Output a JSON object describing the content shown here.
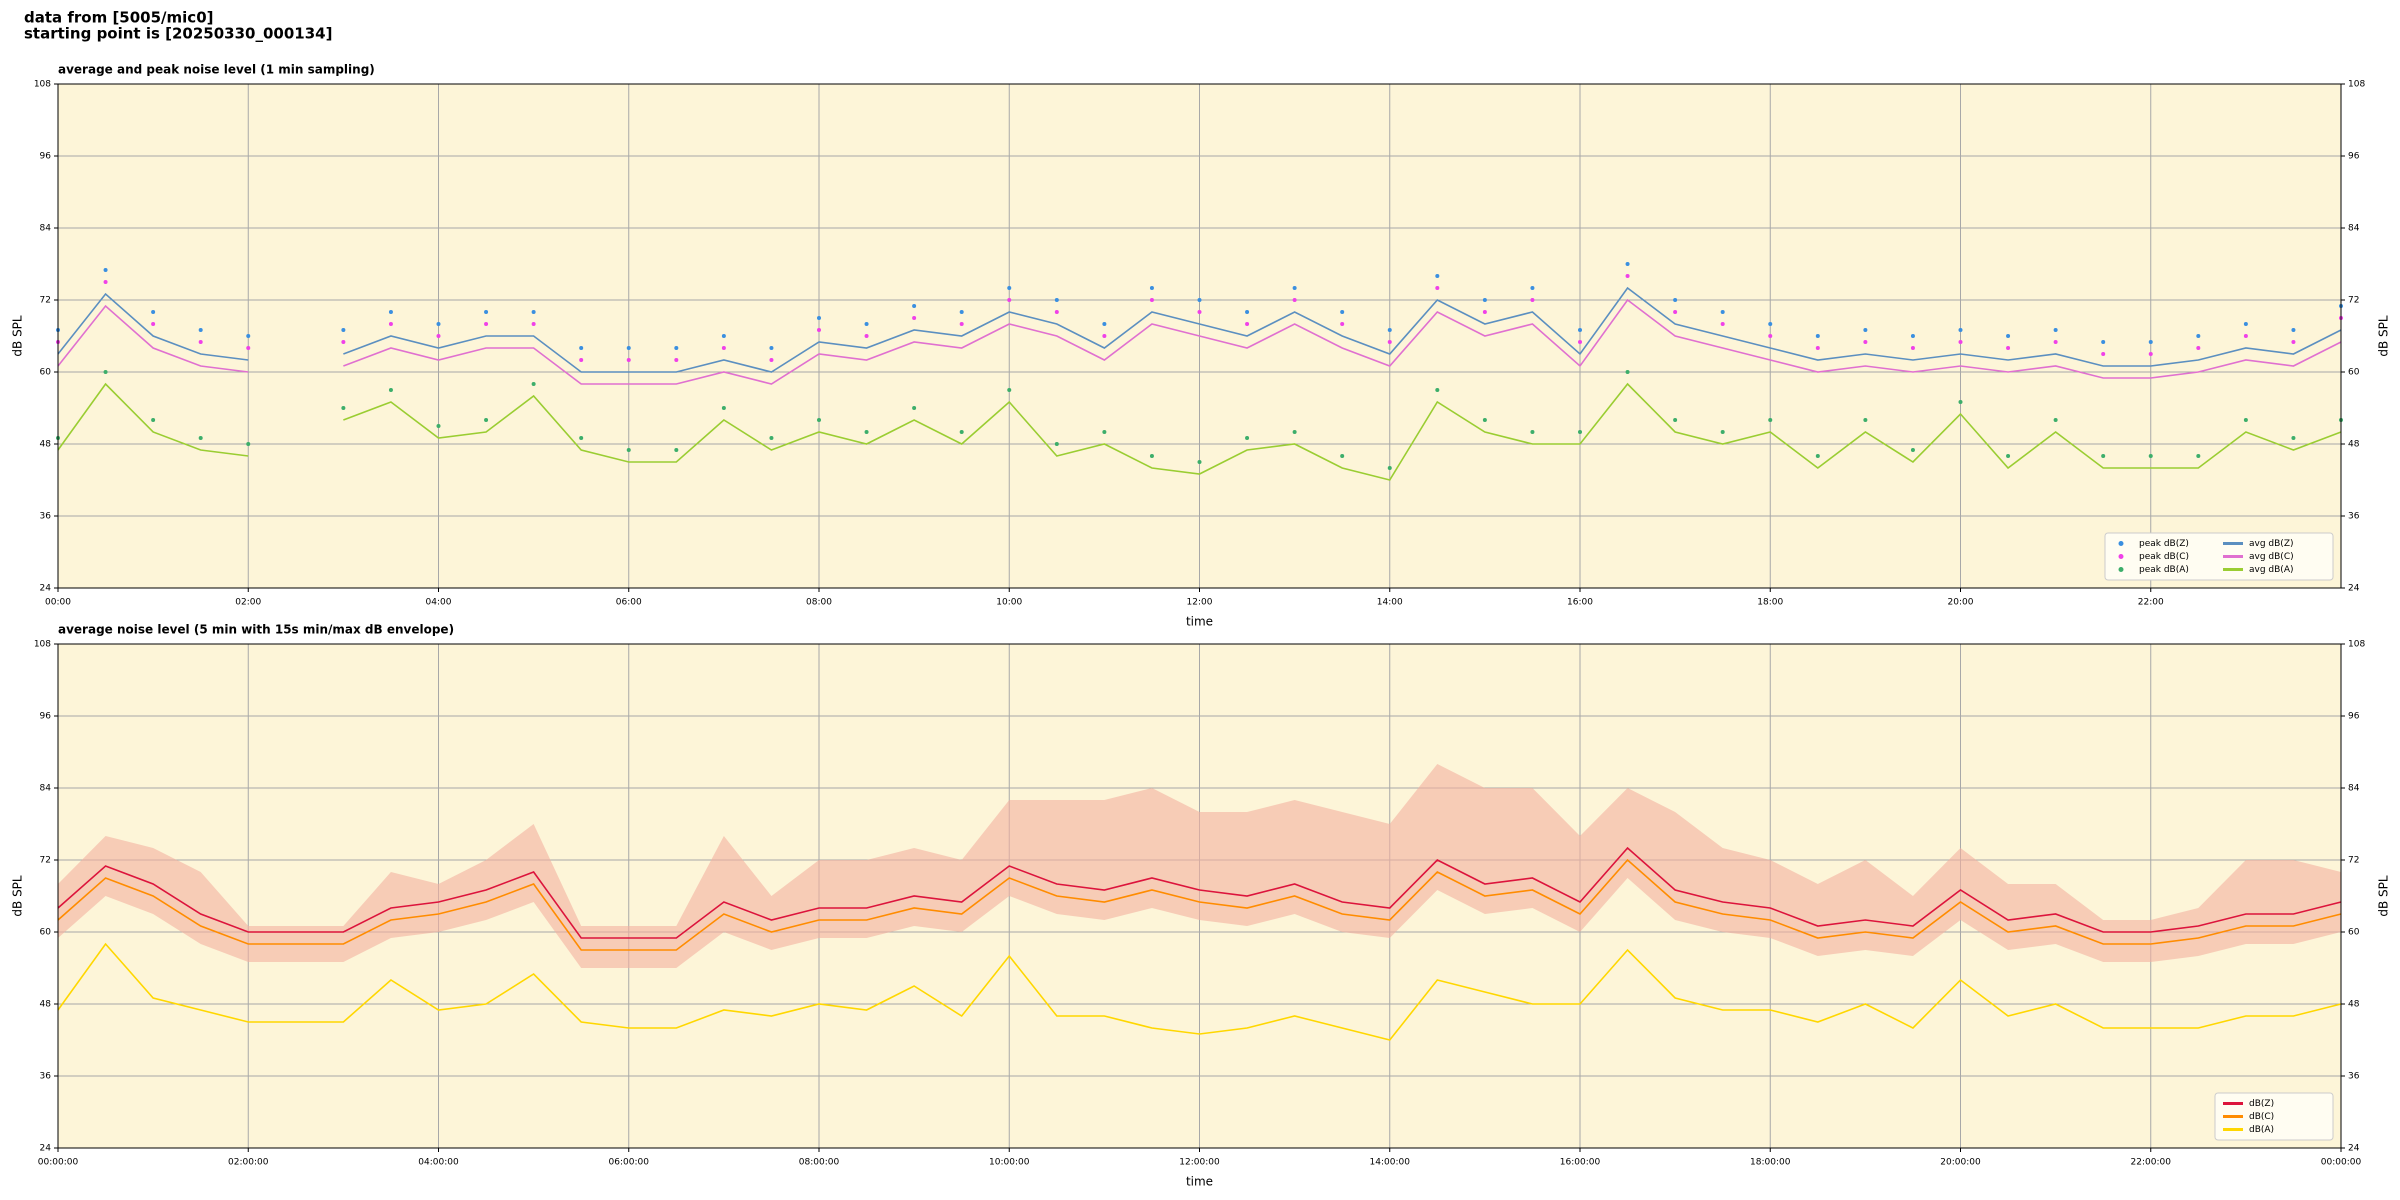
{
  "header": {
    "lines": [
      "data from [5005/mic0]",
      "starting point is [20250330_000134]"
    ]
  },
  "chart_data": [
    {
      "type": "line",
      "title": "average and peak noise level (1 min sampling)",
      "xlabel": "time",
      "ylabel": "dB SPL",
      "x": [
        0,
        0.5,
        1,
        1.5,
        2,
        2.5,
        3,
        3.5,
        4,
        4.5,
        5,
        5.5,
        6,
        6.5,
        7,
        7.5,
        8,
        8.5,
        9,
        9.5,
        10,
        10.5,
        11,
        11.5,
        12,
        12.5,
        13,
        13.5,
        14,
        14.5,
        15,
        15.5,
        16,
        16.5,
        17,
        17.5,
        18,
        18.5,
        19,
        19.5,
        20,
        20.5,
        21,
        21.5,
        22,
        22.5,
        23,
        23.5,
        24
      ],
      "xlim": [
        0,
        24
      ],
      "xticks": [
        {
          "value": 0,
          "label": "00:00"
        },
        {
          "value": 2,
          "label": "02:00"
        },
        {
          "value": 4,
          "label": "04:00"
        },
        {
          "value": 6,
          "label": "06:00"
        },
        {
          "value": 8,
          "label": "08:00"
        },
        {
          "value": 10,
          "label": "10:00"
        },
        {
          "value": 12,
          "label": "12:00"
        },
        {
          "value": 14,
          "label": "14:00"
        },
        {
          "value": 16,
          "label": "16:00"
        },
        {
          "value": 18,
          "label": "18:00"
        },
        {
          "value": 20,
          "label": "20:00"
        },
        {
          "value": 22,
          "label": "22:00"
        }
      ],
      "ylim": [
        24,
        108
      ],
      "yticks": [
        24,
        36,
        48,
        60,
        72,
        84,
        96,
        108
      ],
      "grid": true,
      "legend": "lower right",
      "legend_columns": 2,
      "series": [
        {
          "name": "peak dB(Z)",
          "marker": "dot",
          "color": "#3a8fe0",
          "values": [
            67,
            77,
            70,
            67,
            66,
            null,
            67,
            70,
            68,
            70,
            70,
            64,
            64,
            64,
            66,
            64,
            69,
            68,
            71,
            70,
            74,
            72,
            68,
            74,
            72,
            70,
            74,
            70,
            67,
            76,
            72,
            74,
            67,
            78,
            72,
            70,
            68,
            66,
            67,
            66,
            67,
            66,
            67,
            65,
            65,
            66,
            68,
            67,
            71
          ]
        },
        {
          "name": "peak dB(C)",
          "marker": "dot",
          "color": "#f040e8",
          "values": [
            65,
            75,
            68,
            65,
            64,
            null,
            65,
            68,
            66,
            68,
            68,
            62,
            62,
            62,
            64,
            62,
            67,
            66,
            69,
            68,
            72,
            70,
            66,
            72,
            70,
            68,
            72,
            68,
            65,
            74,
            70,
            72,
            65,
            76,
            70,
            68,
            66,
            64,
            65,
            64,
            65,
            64,
            65,
            63,
            63,
            64,
            66,
            65,
            69
          ]
        },
        {
          "name": "peak dB(A)",
          "marker": "dot",
          "color": "#3cae6a",
          "values": [
            49,
            60,
            52,
            49,
            48,
            null,
            54,
            57,
            51,
            52,
            58,
            49,
            47,
            47,
            54,
            49,
            52,
            50,
            54,
            50,
            57,
            48,
            50,
            46,
            45,
            49,
            50,
            46,
            44,
            57,
            52,
            50,
            50,
            60,
            52,
            50,
            52,
            46,
            52,
            47,
            55,
            46,
            52,
            46,
            46,
            46,
            52,
            49,
            52
          ]
        },
        {
          "name": "avg dB(Z)",
          "marker": "line",
          "color": "#5b8fc0",
          "values": [
            63,
            73,
            66,
            63,
            62,
            null,
            63,
            66,
            64,
            66,
            66,
            60,
            60,
            60,
            62,
            60,
            65,
            64,
            67,
            66,
            70,
            68,
            64,
            70,
            68,
            66,
            70,
            66,
            63,
            72,
            68,
            70,
            63,
            74,
            68,
            66,
            64,
            62,
            63,
            62,
            63,
            62,
            63,
            61,
            61,
            62,
            64,
            63,
            67
          ]
        },
        {
          "name": "avg dB(C)",
          "marker": "line",
          "color": "#e070d0",
          "values": [
            61,
            71,
            64,
            61,
            60,
            null,
            61,
            64,
            62,
            64,
            64,
            58,
            58,
            58,
            60,
            58,
            63,
            62,
            65,
            64,
            68,
            66,
            62,
            68,
            66,
            64,
            68,
            64,
            61,
            70,
            66,
            68,
            61,
            72,
            66,
            64,
            62,
            60,
            61,
            60,
            61,
            60,
            61,
            59,
            59,
            60,
            62,
            61,
            65
          ]
        },
        {
          "name": "avg dB(A)",
          "marker": "line",
          "color": "#9acd32",
          "values": [
            47,
            58,
            50,
            47,
            46,
            null,
            52,
            55,
            49,
            50,
            56,
            47,
            45,
            45,
            52,
            47,
            50,
            48,
            52,
            48,
            55,
            46,
            48,
            44,
            43,
            47,
            48,
            44,
            42,
            55,
            50,
            48,
            48,
            58,
            50,
            48,
            50,
            44,
            50,
            45,
            53,
            44,
            50,
            44,
            44,
            44,
            50,
            47,
            50
          ]
        }
      ]
    },
    {
      "type": "line",
      "title": "average noise level (5 min with 15s min/max dB envelope)",
      "xlabel": "time",
      "ylabel": "dB SPL",
      "x": [
        0,
        0.5,
        1,
        1.5,
        2,
        2.5,
        3,
        3.5,
        4,
        4.5,
        5,
        5.5,
        6,
        6.5,
        7,
        7.5,
        8,
        8.5,
        9,
        9.5,
        10,
        10.5,
        11,
        11.5,
        12,
        12.5,
        13,
        13.5,
        14,
        14.5,
        15,
        15.5,
        16,
        16.5,
        17,
        17.5,
        18,
        18.5,
        19,
        19.5,
        20,
        20.5,
        21,
        21.5,
        22,
        22.5,
        23,
        23.5,
        24
      ],
      "xlim": [
        0,
        24
      ],
      "xticks": [
        {
          "value": 0,
          "label": "00:00:00"
        },
        {
          "value": 2,
          "label": "02:00:00"
        },
        {
          "value": 4,
          "label": "04:00:00"
        },
        {
          "value": 6,
          "label": "06:00:00"
        },
        {
          "value": 8,
          "label": "08:00:00"
        },
        {
          "value": 10,
          "label": "10:00:00"
        },
        {
          "value": 12,
          "label": "12:00:00"
        },
        {
          "value": 14,
          "label": "14:00:00"
        },
        {
          "value": 16,
          "label": "16:00:00"
        },
        {
          "value": 18,
          "label": "18:00:00"
        },
        {
          "value": 20,
          "label": "20:00:00"
        },
        {
          "value": 22,
          "label": "22:00:00"
        },
        {
          "value": 24,
          "label": "00:00:00"
        }
      ],
      "ylim": [
        24,
        108
      ],
      "yticks": [
        24,
        36,
        48,
        60,
        72,
        84,
        96,
        108
      ],
      "grid": true,
      "legend": "lower right",
      "legend_columns": 1,
      "envelope": {
        "color": "#f4b0a0",
        "lower": [
          59,
          66,
          63,
          58,
          55,
          55,
          55,
          59,
          60,
          62,
          65,
          54,
          54,
          54,
          60,
          57,
          59,
          59,
          61,
          60,
          66,
          63,
          62,
          64,
          62,
          61,
          63,
          60,
          59,
          67,
          63,
          64,
          60,
          69,
          62,
          60,
          59,
          56,
          57,
          56,
          62,
          57,
          58,
          55,
          55,
          56,
          58,
          58,
          60
        ],
        "upper": [
          68,
          76,
          74,
          70,
          61,
          61,
          61,
          70,
          68,
          72,
          78,
          61,
          61,
          61,
          76,
          66,
          72,
          72,
          74,
          72,
          82,
          82,
          82,
          84,
          80,
          80,
          82,
          80,
          78,
          88,
          84,
          84,
          76,
          84,
          80,
          74,
          72,
          68,
          72,
          66,
          74,
          68,
          68,
          62,
          62,
          64,
          72,
          72,
          70
        ]
      },
      "series": [
        {
          "name": "dB(Z)",
          "marker": "line",
          "color": "#dc143c",
          "values": [
            64,
            71,
            68,
            63,
            60,
            60,
            60,
            64,
            65,
            67,
            70,
            59,
            59,
            59,
            65,
            62,
            64,
            64,
            66,
            65,
            71,
            68,
            67,
            69,
            67,
            66,
            68,
            65,
            64,
            72,
            68,
            69,
            65,
            74,
            67,
            65,
            64,
            61,
            62,
            61,
            67,
            62,
            63,
            60,
            60,
            61,
            63,
            63,
            65
          ]
        },
        {
          "name": "dB(C)",
          "marker": "line",
          "color": "#ff8c00",
          "values": [
            62,
            69,
            66,
            61,
            58,
            58,
            58,
            62,
            63,
            65,
            68,
            57,
            57,
            57,
            63,
            60,
            62,
            62,
            64,
            63,
            69,
            66,
            65,
            67,
            65,
            64,
            66,
            63,
            62,
            70,
            66,
            67,
            63,
            72,
            65,
            63,
            62,
            59,
            60,
            59,
            65,
            60,
            61,
            58,
            58,
            59,
            61,
            61,
            63
          ]
        },
        {
          "name": "dB(A)",
          "marker": "line",
          "color": "#ffd700",
          "values": [
            47,
            58,
            49,
            47,
            45,
            45,
            45,
            52,
            47,
            48,
            53,
            45,
            44,
            44,
            47,
            46,
            48,
            47,
            51,
            46,
            56,
            46,
            46,
            44,
            43,
            44,
            46,
            44,
            42,
            52,
            50,
            48,
            48,
            57,
            49,
            47,
            47,
            45,
            48,
            44,
            52,
            46,
            48,
            44,
            44,
            44,
            46,
            46,
            48
          ]
        }
      ]
    }
  ]
}
